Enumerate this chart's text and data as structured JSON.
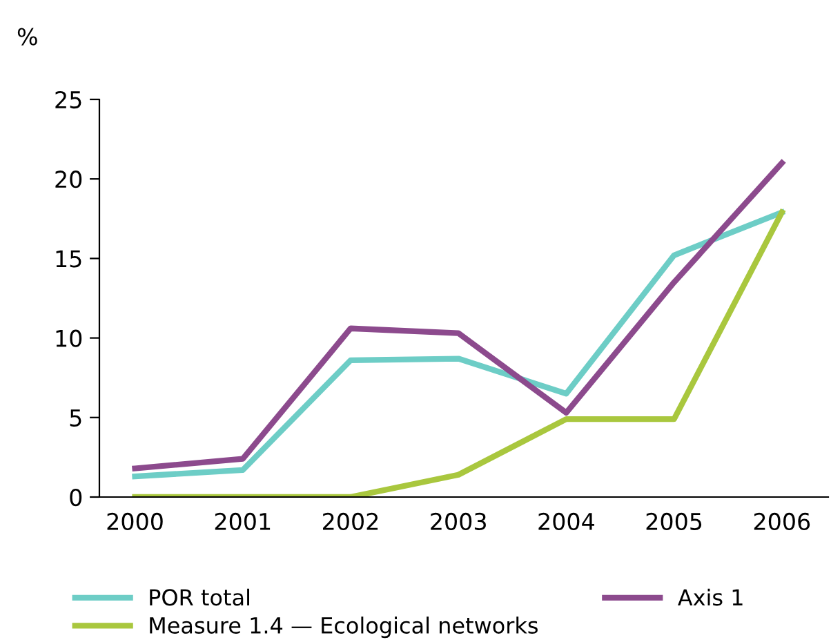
{
  "chart_data": {
    "type": "line",
    "ylabel": "%",
    "categories": [
      "2000",
      "2001",
      "2002",
      "2003",
      "2004",
      "2005",
      "2006"
    ],
    "series": [
      {
        "name": "POR total",
        "color": "#6dcdc6",
        "values": [
          1.3,
          1.7,
          8.6,
          8.7,
          6.5,
          15.2,
          17.9
        ]
      },
      {
        "name": "Axis 1",
        "color": "#8c4a8d",
        "values": [
          1.8,
          2.4,
          10.6,
          10.3,
          5.3,
          13.5,
          21.0
        ]
      },
      {
        "name": "Measure 1.4 — Ecological networks",
        "color": "#a9c73e",
        "values": [
          0,
          0,
          0,
          1.4,
          4.9,
          4.9,
          17.9
        ]
      }
    ],
    "ylim": [
      0,
      25
    ],
    "yticks": [
      0,
      5,
      10,
      15,
      20,
      25
    ],
    "grid": false,
    "legend": "bottom",
    "marker": "none",
    "line_style": "solid"
  }
}
